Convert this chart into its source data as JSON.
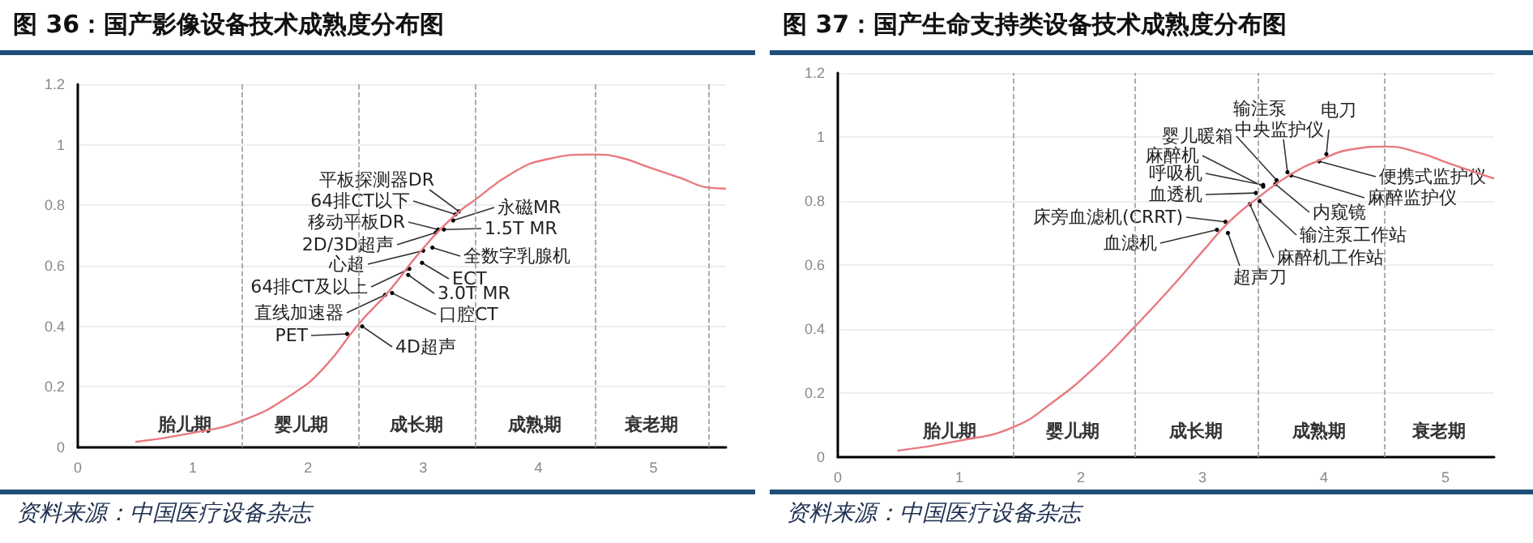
{
  "chart_data": [
    {
      "type": "line",
      "title": "图 36：国产影像设备技术成熟度分布图",
      "x": [
        0.5,
        0.97,
        1.43,
        1.86,
        2.14,
        2.44,
        2.7,
        2.98,
        3.27,
        3.45,
        3.78,
        4.06,
        4.48,
        4.72,
        4.95,
        5.23,
        5.49,
        5.63
      ],
      "series": [
        {
          "color": "#e8787f",
          "values": [
            0.018,
            0.046,
            0.089,
            0.175,
            0.264,
            0.408,
            0.515,
            0.649,
            0.765,
            0.818,
            0.908,
            0.951,
            0.968,
            0.957,
            0.927,
            0.891,
            0.858,
            0.855
          ]
        }
      ],
      "xlim": [
        0,
        5.63
      ],
      "xticks": [
        0,
        1,
        2,
        3,
        4,
        5
      ],
      "ylim": [
        0,
        1.2
      ],
      "yticks": [
        0,
        0.2,
        0.4,
        0.6,
        0.8,
        1,
        1.2
      ],
      "grid": "y",
      "marker": "none",
      "line_style": "solid",
      "ref_lines": [
        {
          "axis": "x",
          "value": 1.43,
          "line_style": "dashed"
        },
        {
          "axis": "x",
          "value": 2.44,
          "line_style": "dashed"
        },
        {
          "axis": "x",
          "value": 3.45,
          "line_style": "dashed"
        },
        {
          "axis": "x",
          "value": 4.49,
          "line_style": "dashed"
        },
        {
          "axis": "x",
          "value": 5.48,
          "line_style": "dashed"
        }
      ],
      "annotations": [
        "胎儿期",
        "婴儿期",
        "成长期",
        "成熟期",
        "衰老期",
        {
          "text": "PET",
          "x": 2.34,
          "y": 0.375
        },
        {
          "text": "4D超声",
          "x": 2.47,
          "y": 0.4
        },
        {
          "text": "直线加速器",
          "x": 2.67,
          "y": 0.504
        },
        {
          "text": "口腔CT",
          "x": 2.73,
          "y": 0.51
        },
        {
          "text": "64排CT及以上",
          "x": 2.88,
          "y": 0.59
        },
        {
          "text": "3.0T MR",
          "x": 2.87,
          "y": 0.57
        },
        {
          "text": "ECT",
          "x": 2.99,
          "y": 0.61
        },
        {
          "text": "心超",
          "x": 3.0,
          "y": 0.65
        },
        {
          "text": "全数字乳腺机",
          "x": 3.08,
          "y": 0.66
        },
        {
          "text": "2D/3D超声",
          "x": 3.11,
          "y": 0.71
        },
        {
          "text": "移动平板DR",
          "x": 3.13,
          "y": 0.72
        },
        {
          "text": "1.5T MR",
          "x": 3.18,
          "y": 0.72
        },
        {
          "text": "永磁MR",
          "x": 3.26,
          "y": 0.75
        },
        {
          "text": "64排CT以下",
          "x": 3.28,
          "y": 0.77
        },
        {
          "text": "平板探测器DR",
          "x": 3.31,
          "y": 0.78
        },
        "资料来源：中国医疗设备杂志"
      ]
    },
    {
      "type": "line",
      "title": "图 37：国产生命支持类设备技术成熟度分布图",
      "x": [
        0.49,
        1.0,
        1.44,
        1.76,
        2.11,
        2.44,
        2.73,
        3.0,
        3.22,
        3.46,
        3.71,
        3.98,
        4.24,
        4.51,
        4.78,
        5.04,
        5.4
      ],
      "series": [
        {
          "color": "#e8787f",
          "values": [
            0.02,
            0.051,
            0.093,
            0.169,
            0.279,
            0.406,
            0.524,
            0.642,
            0.735,
            0.811,
            0.879,
            0.93,
            0.962,
            0.97,
            0.951,
            0.916,
            0.87
          ]
        }
      ],
      "xlim": [
        0,
        5.4
      ],
      "xticks": [
        0,
        1,
        2,
        3,
        4,
        5
      ],
      "ylim": [
        0,
        1.2
      ],
      "yticks": [
        0,
        0.2,
        0.4,
        0.6,
        0.8,
        1,
        1.2
      ],
      "grid": "y",
      "marker": "none",
      "line_style": "solid",
      "ref_lines": [
        {
          "axis": "x",
          "value": 1.44,
          "line_style": "dashed"
        },
        {
          "axis": "x",
          "value": 2.44,
          "line_style": "dashed"
        },
        {
          "axis": "x",
          "value": 3.46,
          "line_style": "dashed"
        },
        {
          "axis": "x",
          "value": 4.49,
          "line_style": "dashed"
        }
      ],
      "annotations": [
        "胎儿期",
        "婴儿期",
        "成长期",
        "成熟期",
        "衰老期",
        {
          "text": "血滤机",
          "x": 3.12,
          "y": 0.71
        },
        {
          "text": "床旁血滤机(CRRT)",
          "x": 3.19,
          "y": 0.735
        },
        {
          "text": "超声刀",
          "x": 3.21,
          "y": 0.7
        },
        {
          "text": "血透机",
          "x": 3.44,
          "y": 0.825
        },
        {
          "text": "麻醉机工作站",
          "x": 3.39,
          "y": 0.79
        },
        {
          "text": "呼吸机",
          "x": 3.5,
          "y": 0.85
        },
        {
          "text": "输注泵工作站",
          "x": 3.47,
          "y": 0.8
        },
        {
          "text": "麻醉机",
          "x": 3.5,
          "y": 0.845
        },
        {
          "text": "内窥镜",
          "x": 3.6,
          "y": 0.853
        },
        {
          "text": "婴儿暖箱",
          "x": 3.61,
          "y": 0.865
        },
        {
          "text": "输注泵",
          "x": 3.7,
          "y": 0.89
        },
        {
          "text": "中央监护仪",
          "x": 3.7,
          "y": 0.89
        },
        {
          "text": "麻醉监护仪",
          "x": 3.73,
          "y": 0.88
        },
        {
          "text": "电刀",
          "x": 4.02,
          "y": 0.946
        },
        {
          "text": "便携式监护仪",
          "x": 3.96,
          "y": 0.924
        },
        "资料来源：中国医疗设备杂志"
      ]
    }
  ]
}
